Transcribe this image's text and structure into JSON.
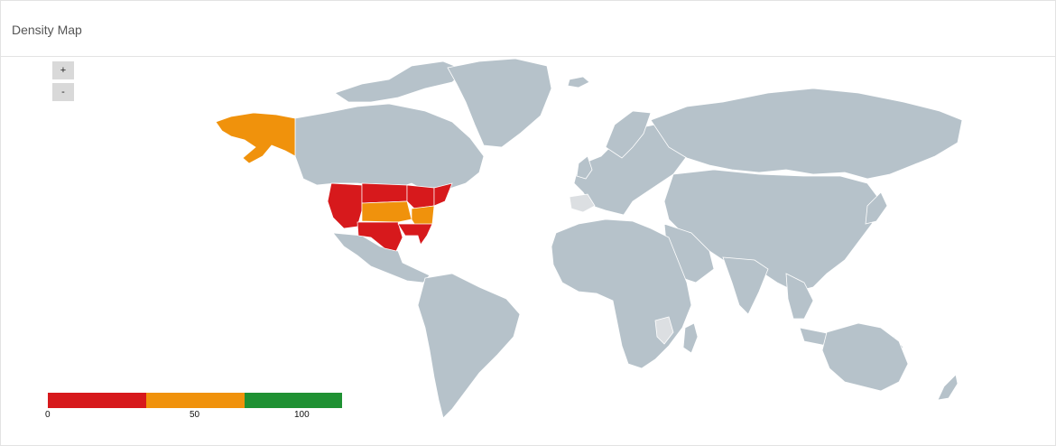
{
  "panel": {
    "title": "Density Map"
  },
  "zoom": {
    "in_label": "+",
    "out_label": "-"
  },
  "colors": {
    "land": "#b6c2ca",
    "land_light": "#dcdfe2",
    "border": "#ffffff",
    "low": "#d7191c",
    "mid": "#f0920c",
    "high": "#1f9133"
  },
  "legend": {
    "segments": [
      {
        "color_key": "low"
      },
      {
        "color_key": "mid"
      },
      {
        "color_key": "high"
      }
    ],
    "labels": [
      "0",
      "50",
      "100"
    ]
  }
}
